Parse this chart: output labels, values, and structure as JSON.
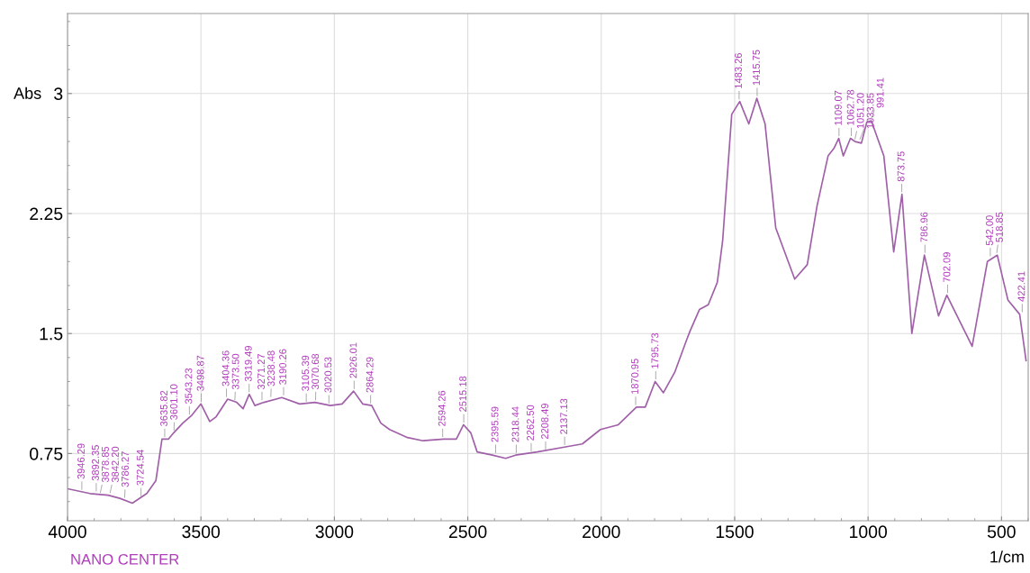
{
  "chart_data": {
    "type": "line",
    "ylabel": "Abs",
    "xlabel": "1/cm",
    "xlim": [
      4000,
      400
    ],
    "ylim": [
      0.33,
      3.5
    ],
    "xticks": [
      4000,
      3500,
      3000,
      2500,
      2000,
      1500,
      1000,
      500
    ],
    "yticks": [
      0.75,
      1.5,
      2.25,
      3
    ],
    "grid": true,
    "marker": "none",
    "line_style": "solid",
    "series": [
      {
        "color": "#a060a8",
        "x": [
          4000,
          3916,
          3848,
          3804,
          3757,
          3703,
          3669,
          3646,
          3622,
          3602,
          3568,
          3534,
          3500,
          3467,
          3443,
          3400,
          3366,
          3342,
          3319,
          3298,
          3264,
          3197,
          3130,
          3073,
          3015,
          2971,
          2928,
          2894,
          2860,
          2826,
          2793,
          2726,
          2668,
          2590,
          2543,
          2516,
          2489,
          2465,
          2408,
          2358,
          2321,
          2240,
          2138,
          2071,
          2003,
          1936,
          1868,
          1835,
          1798,
          1767,
          1724,
          1680,
          1666,
          1632,
          1599,
          1565,
          1545,
          1511,
          1481,
          1447,
          1417,
          1386,
          1346,
          1275,
          1228,
          1191,
          1150,
          1127,
          1110,
          1093,
          1066,
          1049,
          1025,
          1005,
          988,
          941,
          904,
          873,
          836,
          789,
          736,
          705,
          610,
          553,
          516,
          476,
          432,
          408
        ],
        "values": [
          0.53,
          0.5,
          0.49,
          0.47,
          0.44,
          0.5,
          0.58,
          0.84,
          0.84,
          0.88,
          0.94,
          0.99,
          1.06,
          0.95,
          0.98,
          1.09,
          1.07,
          1.03,
          1.12,
          1.05,
          1.07,
          1.1,
          1.06,
          1.07,
          1.05,
          1.06,
          1.14,
          1.06,
          1.05,
          0.94,
          0.9,
          0.85,
          0.83,
          0.84,
          0.84,
          0.93,
          0.88,
          0.76,
          0.74,
          0.72,
          0.74,
          0.76,
          0.79,
          0.81,
          0.9,
          0.93,
          1.04,
          1.04,
          1.2,
          1.13,
          1.26,
          1.46,
          1.52,
          1.65,
          1.68,
          1.82,
          2.08,
          2.87,
          2.95,
          2.81,
          2.97,
          2.81,
          2.16,
          1.84,
          1.93,
          2.3,
          2.61,
          2.66,
          2.72,
          2.61,
          2.72,
          2.7,
          2.69,
          2.82,
          2.83,
          2.61,
          2.01,
          2.37,
          1.5,
          1.99,
          1.61,
          1.74,
          1.42,
          1.95,
          1.99,
          1.71,
          1.62,
          1.33
        ]
      }
    ],
    "annotations": [
      {
        "text": "3946.29",
        "x": 3946.29,
        "y": 0.51
      },
      {
        "text": "3892.35",
        "x": 3892.35,
        "y": 0.5
      },
      {
        "text": "3878.85",
        "x": 3878.85,
        "y": 0.49
      },
      {
        "text": "3842.20",
        "x": 3842.2,
        "y": 0.49
      },
      {
        "text": "3786.27",
        "x": 3786.27,
        "y": 0.46
      },
      {
        "text": "3724.54",
        "x": 3724.54,
        "y": 0.47
      },
      {
        "text": "3635.82",
        "x": 3635.82,
        "y": 0.84
      },
      {
        "text": "3601.10",
        "x": 3601.1,
        "y": 0.88
      },
      {
        "text": "3543.23",
        "x": 3543.23,
        "y": 0.98
      },
      {
        "text": "3498.87",
        "x": 3498.87,
        "y": 1.06
      },
      {
        "text": "3404.36",
        "x": 3404.36,
        "y": 1.09
      },
      {
        "text": "3373.50",
        "x": 3373.5,
        "y": 1.07
      },
      {
        "text": "3319.49",
        "x": 3319.49,
        "y": 1.12
      },
      {
        "text": "3271.27",
        "x": 3271.27,
        "y": 1.07
      },
      {
        "text": "3238.48",
        "x": 3238.48,
        "y": 1.09
      },
      {
        "text": "3190.26",
        "x": 3190.26,
        "y": 1.1
      },
      {
        "text": "3105.39",
        "x": 3105.39,
        "y": 1.06
      },
      {
        "text": "3070.68",
        "x": 3070.68,
        "y": 1.07
      },
      {
        "text": "3020.53",
        "x": 3020.53,
        "y": 1.05
      },
      {
        "text": "2926.01",
        "x": 2926.01,
        "y": 1.14
      },
      {
        "text": "2864.29",
        "x": 2864.29,
        "y": 1.05
      },
      {
        "text": "2594.26",
        "x": 2594.26,
        "y": 0.84
      },
      {
        "text": "2515.18",
        "x": 2515.18,
        "y": 0.93
      },
      {
        "text": "2395.59",
        "x": 2395.59,
        "y": 0.74
      },
      {
        "text": "2318.44",
        "x": 2318.44,
        "y": 0.74
      },
      {
        "text": "2262.50",
        "x": 2262.5,
        "y": 0.75
      },
      {
        "text": "2208.49",
        "x": 2208.49,
        "y": 0.76
      },
      {
        "text": "2137.13",
        "x": 2137.13,
        "y": 0.79
      },
      {
        "text": "1870.95",
        "x": 1870.95,
        "y": 1.04
      },
      {
        "text": "1795.73",
        "x": 1795.73,
        "y": 1.2
      },
      {
        "text": "1483.26",
        "x": 1483.26,
        "y": 2.95
      },
      {
        "text": "1415.75",
        "x": 1415.75,
        "y": 2.97
      },
      {
        "text": "1109.07",
        "x": 1109.07,
        "y": 2.72
      },
      {
        "text": "1062.78",
        "x": 1062.78,
        "y": 2.72
      },
      {
        "text": "1051.20",
        "x": 1051.2,
        "y": 2.7
      },
      {
        "text": "1033.85",
        "x": 1033.85,
        "y": 2.7
      },
      {
        "text": "991.41",
        "x": 991.41,
        "y": 2.83
      },
      {
        "text": "873.75",
        "x": 873.75,
        "y": 2.37
      },
      {
        "text": "786.96",
        "x": 786.96,
        "y": 1.99
      },
      {
        "text": "702.09",
        "x": 702.09,
        "y": 1.74
      },
      {
        "text": "542.00",
        "x": 542.0,
        "y": 1.97
      },
      {
        "text": "518.85",
        "x": 518.85,
        "y": 1.99
      },
      {
        "text": "422.41",
        "x": 422.41,
        "y": 1.62
      },
      "NANO CENTER"
    ]
  }
}
